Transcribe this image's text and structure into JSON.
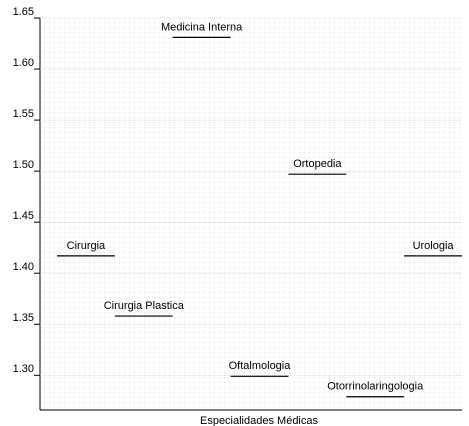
{
  "chart_data": {
    "type": "level",
    "x_label": "Especialidades Médicas",
    "categories": [
      "Cirurgia",
      "Cirurgia Plastica",
      "Medicina Interna",
      "Oftalmologia",
      "Ortopedia",
      "Otorrinolaringologia",
      "Urologia"
    ],
    "values": [
      1.417,
      1.358,
      1.631,
      1.299,
      1.497,
      1.279,
      1.417
    ],
    "color": "#000000",
    "ylim": [
      1.266,
      1.65
    ],
    "yticks": [
      {
        "value": 1.3,
        "label": "1.30"
      },
      1.35,
      {
        "value": 1.4,
        "label": "1.40"
      },
      1.45,
      {
        "value": 1.5,
        "label": "1.50"
      },
      1.55,
      {
        "value": 1.6,
        "label": "1.60"
      },
      1.65
    ],
    "grid": true
  }
}
